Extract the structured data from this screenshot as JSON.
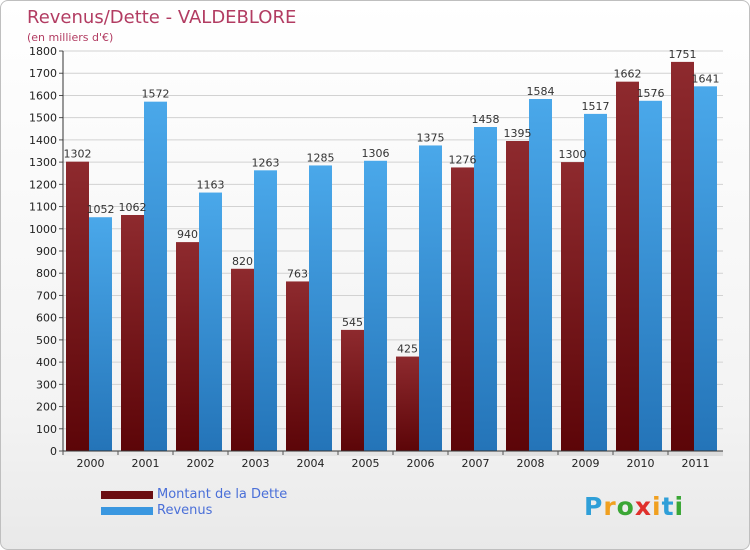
{
  "chart_data": {
    "type": "bar",
    "title": "Revenus/Dette - VALDEBLORE",
    "subtitle": "(en milliers d'€)",
    "categories": [
      "2000",
      "2001",
      "2002",
      "2003",
      "2004",
      "2005",
      "2006",
      "2007",
      "2008",
      "2009",
      "2010",
      "2011"
    ],
    "series": [
      {
        "name": "Montant de la Dette",
        "color": "#8b1e24",
        "values": [
          1302,
          1062,
          940,
          820,
          763,
          545,
          425,
          1276,
          1395,
          1300,
          1662,
          1751
        ],
        "labels": [
          "1302",
          "1062",
          "940",
          "820",
          "763",
          "545",
          "425",
          "1276",
          "1395",
          "1300",
          "1662",
          "1751"
        ]
      },
      {
        "name": "Revenus",
        "color": "#3a97e0",
        "values": [
          1052,
          1572,
          1163,
          1263,
          1285,
          1306,
          1375,
          1458,
          1584,
          1517,
          1576,
          1641
        ],
        "labels": [
          "1052",
          "1572",
          "1163",
          "1263",
          "1285",
          "1306",
          "1375",
          "1458",
          "1584",
          "1517",
          "1576",
          "1641"
        ]
      }
    ],
    "ylim": [
      0,
      1800
    ],
    "yticks": [
      0,
      100,
      200,
      300,
      400,
      500,
      600,
      700,
      800,
      900,
      1000,
      1100,
      1200,
      1300,
      1400,
      1500,
      1600,
      1700,
      1800
    ],
    "grid": true,
    "legend_position": "bottom-left"
  },
  "logo": {
    "letters": [
      "P",
      "r",
      "o",
      "x",
      "i",
      "t",
      "i"
    ],
    "colors": [
      "#2f9fd8",
      "#f0a020",
      "#3aa635",
      "#e0302c",
      "#f0a020",
      "#2f9fd8",
      "#3aa635"
    ]
  }
}
